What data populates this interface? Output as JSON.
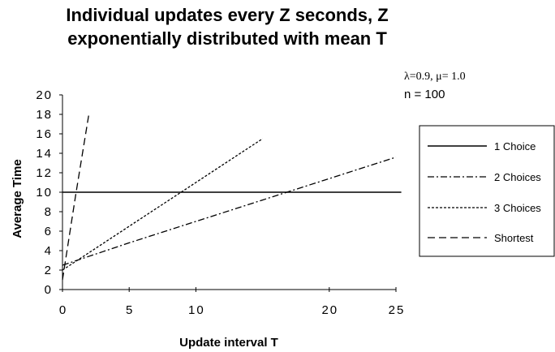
{
  "chart_data": {
    "type": "line",
    "title_lines": [
      "Individual updates every Z seconds, Z",
      "exponentially distributed with mean T"
    ],
    "xlabel": "Update interval T",
    "ylabel": "Average Time",
    "xlim": [
      0,
      25
    ],
    "ylim": [
      0,
      20
    ],
    "x_ticks": [
      0,
      5,
      10,
      20,
      25
    ],
    "y_ticks": [
      0,
      2,
      4,
      6,
      8,
      10,
      12,
      14,
      16,
      18,
      20
    ],
    "annotations": [
      "λ=0.9, μ= 1.0",
      "n = 100"
    ],
    "legend_position": "right",
    "series": [
      {
        "name": "1 Choice",
        "style": "solid",
        "x": [
          0,
          25
        ],
        "y": [
          10,
          10
        ]
      },
      {
        "name": "2 Choices",
        "style": "dashdot",
        "x": [
          0,
          5,
          10,
          15,
          20,
          25
        ],
        "y": [
          2.5,
          4.8,
          7,
          9.2,
          11.4,
          13.6
        ]
      },
      {
        "name": "3 Choices",
        "style": "dotted",
        "x": [
          0,
          5,
          10,
          15
        ],
        "y": [
          2,
          6.5,
          11,
          15.5
        ]
      },
      {
        "name": "Shortest",
        "style": "dashed",
        "x": [
          0,
          1,
          2
        ],
        "y": [
          1,
          9.8,
          18.2
        ]
      }
    ]
  }
}
